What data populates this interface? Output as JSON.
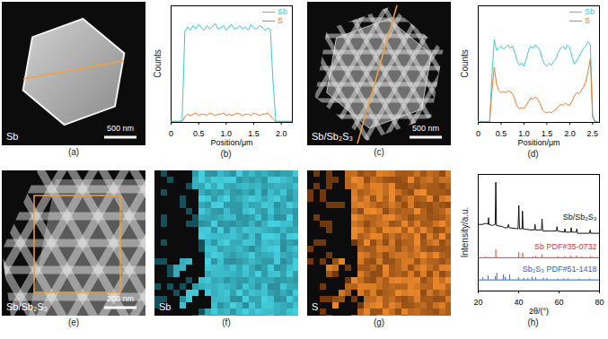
{
  "chart_data": [
    {
      "type": "line",
      "title": "(b)",
      "xlabel": "Position/μm",
      "ylabel": "Counts",
      "x": [
        0,
        0.05,
        0.1,
        0.15,
        0.2,
        0.25,
        0.3,
        0.35,
        0.4,
        0.45,
        0.5,
        0.55,
        0.6,
        0.65,
        0.7,
        0.75,
        0.8,
        0.85,
        0.9,
        0.95,
        1,
        1.05,
        1.1,
        1.15,
        1.2,
        1.25,
        1.3,
        1.35,
        1.4,
        1.45,
        1.5,
        1.55,
        1.6,
        1.65,
        1.7,
        1.75,
        1.8,
        1.85,
        1.9,
        1.95,
        2,
        2.05,
        2.1,
        2.15,
        2.2
      ],
      "xlim": [
        0,
        2.2
      ],
      "xticks": [
        0,
        0.5,
        {
          "value": 1,
          "label": "1.0"
        },
        1.5,
        {
          "value": 2,
          "label": "2.0"
        }
      ],
      "ylim": [
        0,
        1
      ],
      "tick_labels": "x",
      "legend": "top-right",
      "series": [
        {
          "name": "Sb",
          "color": "#3cc8d8",
          "values": [
            0.01,
            0.01,
            0.01,
            0.01,
            0.02,
            0.78,
            0.82,
            0.79,
            0.83,
            0.8,
            0.84,
            0.81,
            0.79,
            0.83,
            0.8,
            0.82,
            0.85,
            0.8,
            0.81,
            0.83,
            0.79,
            0.82,
            0.84,
            0.8,
            0.81,
            0.83,
            0.8,
            0.82,
            0.79,
            0.84,
            0.81,
            0.8,
            0.83,
            0.82,
            0.79,
            0.81,
            0.8,
            0.35,
            0.01,
            0.01,
            0.01,
            0.01,
            0.01,
            0.01,
            0.01
          ]
        },
        {
          "name": "S",
          "color": "#f07a2a",
          "values": [
            0.005,
            0.005,
            0.005,
            0.005,
            0.005,
            0.05,
            0.07,
            0.06,
            0.07,
            0.08,
            0.06,
            0.07,
            0.07,
            0.06,
            0.08,
            0.07,
            0.06,
            0.07,
            0.07,
            0.08,
            0.06,
            0.07,
            0.06,
            0.07,
            0.08,
            0.07,
            0.06,
            0.07,
            0.07,
            0.06,
            0.08,
            0.07,
            0.06,
            0.07,
            0.07,
            0.08,
            0.06,
            0.03,
            0.005,
            0.005,
            0.005,
            0.005,
            0.005,
            0.005,
            0.005
          ]
        }
      ]
    },
    {
      "type": "line",
      "title": "(d)",
      "xlabel": "Position/μm",
      "ylabel": "Counts",
      "x": [
        0,
        0.05,
        0.1,
        0.15,
        0.2,
        0.25,
        0.3,
        0.35,
        0.4,
        0.45,
        0.5,
        0.55,
        0.6,
        0.65,
        0.7,
        0.75,
        0.8,
        0.85,
        0.9,
        0.95,
        1,
        1.05,
        1.1,
        1.15,
        1.2,
        1.25,
        1.3,
        1.35,
        1.4,
        1.45,
        1.5,
        1.55,
        1.6,
        1.65,
        1.7,
        1.75,
        1.8,
        1.85,
        1.9,
        1.95,
        2,
        2.05,
        2.1,
        2.15,
        2.2,
        2.25,
        2.3,
        2.35,
        2.4,
        2.45,
        2.5,
        2.55,
        2.6
      ],
      "xlim": [
        0,
        2.65
      ],
      "xticks": [
        0,
        0.5,
        {
          "value": 1,
          "label": "1.0"
        },
        1.5,
        {
          "value": 2,
          "label": "2.0"
        },
        2.5
      ],
      "ylim": [
        0,
        1.1
      ],
      "tick_labels": "x",
      "legend": "top-right",
      "series": [
        {
          "name": "Sb",
          "color": "#3cc8d8",
          "values": [
            0.01,
            0.01,
            0.01,
            0.01,
            0.01,
            0.01,
            0.45,
            0.78,
            0.68,
            0.7,
            0.72,
            0.69,
            0.71,
            0.73,
            0.7,
            0.72,
            0.66,
            0.58,
            0.54,
            0.56,
            0.53,
            0.6,
            0.68,
            0.72,
            0.7,
            0.73,
            0.71,
            0.68,
            0.6,
            0.55,
            0.53,
            0.56,
            0.54,
            0.58,
            0.6,
            0.66,
            0.7,
            0.72,
            0.69,
            0.73,
            0.71,
            0.62,
            0.55,
            0.58,
            0.62,
            0.66,
            0.7,
            0.72,
            0.76,
            0.74,
            0.08,
            0.01,
            0.01
          ]
        },
        {
          "name": "S",
          "color": "#f07a2a",
          "values": [
            0.005,
            0.005,
            0.005,
            0.005,
            0.005,
            0.005,
            0.3,
            0.52,
            0.36,
            0.3,
            0.28,
            0.29,
            0.28,
            0.3,
            0.29,
            0.27,
            0.22,
            0.15,
            0.13,
            0.14,
            0.13,
            0.16,
            0.2,
            0.23,
            0.22,
            0.24,
            0.22,
            0.18,
            0.12,
            0.1,
            0.09,
            0.1,
            0.09,
            0.11,
            0.12,
            0.15,
            0.17,
            0.16,
            0.18,
            0.17,
            0.16,
            0.2,
            0.25,
            0.28,
            0.27,
            0.3,
            0.33,
            0.38,
            0.48,
            0.6,
            0.05,
            0.005,
            0.005
          ]
        }
      ]
    },
    {
      "type": "line",
      "title": "(h)",
      "xlabel": "2θ/(°)",
      "ylabel": "Intensity/a.u.",
      "xlim": [
        20,
        80
      ],
      "xticks": [
        20,
        40,
        60,
        80
      ],
      "ylim": [
        0,
        1.05
      ],
      "tick_labels": "x",
      "legend": "inline",
      "series": [
        {
          "name": "Sb/Sb₂S₃",
          "color": "#111111",
          "type": "line",
          "x": [
            20,
            22,
            24,
            24.9,
            25.1,
            25.3,
            27,
            28.4,
            28.7,
            29,
            32,
            33,
            34.5,
            35,
            35.3,
            39.7,
            40.1,
            40.4,
            41.7,
            41.9,
            42.2,
            46,
            47.8,
            48.1,
            48.4,
            51.3,
            51.6,
            51.9,
            56,
            58.7,
            59,
            59.3,
            62.6,
            62.9,
            63.2,
            65.8,
            66,
            66.3,
            68.5,
            68.8,
            69.1,
            75.1,
            75.4,
            75.7,
            80
          ],
          "values": [
            0.6,
            0.6,
            0.61,
            0.6,
            0.66,
            0.6,
            0.59,
            0.6,
            0.98,
            0.59,
            0.58,
            0.57,
            0.57,
            0.6,
            0.57,
            0.56,
            0.77,
            0.56,
            0.56,
            0.72,
            0.56,
            0.55,
            0.55,
            0.6,
            0.55,
            0.55,
            0.65,
            0.54,
            0.54,
            0.54,
            0.58,
            0.54,
            0.53,
            0.56,
            0.53,
            0.53,
            0.57,
            0.53,
            0.53,
            0.56,
            0.52,
            0.52,
            0.55,
            0.52,
            0.52
          ]
        },
        {
          "name": "Sb PDF#35-0732",
          "color": "#e8312f",
          "type": "stick",
          "base": 0.3,
          "x": [
            23.7,
            28.7,
            40.1,
            42,
            47.1,
            48.4,
            51.6,
            59.4,
            62.9,
            65.9,
            68.6,
            71.3,
            75.5,
            76.6
          ],
          "values": [
            0.305,
            0.37,
            0.345,
            0.34,
            0.305,
            0.31,
            0.325,
            0.31,
            0.31,
            0.315,
            0.315,
            0.305,
            0.31,
            0.305
          ]
        },
        {
          "name": "Sb₂S₃ PDF#51-1418",
          "color": "#2f5fc8",
          "type": "stick",
          "base": 0.1,
          "x": [
            22.3,
            24.9,
            28.5,
            29.2,
            32.4,
            33.4,
            35.6,
            39.9,
            42.6,
            44.6,
            46.7,
            48.4,
            52.2,
            54,
            59.3,
            62.4,
            64.4,
            70,
            75
          ],
          "values": [
            0.12,
            0.135,
            0.13,
            0.16,
            0.145,
            0.125,
            0.145,
            0.12,
            0.115,
            0.115,
            0.125,
            0.12,
            0.115,
            0.115,
            0.11,
            0.11,
            0.11,
            0.108,
            0.108
          ]
        }
      ]
    }
  ],
  "images": [
    {
      "panel": "(a)",
      "label": "Sb",
      "scale_bar": "500 nm"
    },
    {
      "panel": "(c)",
      "label": "Sb/Sb₂S₃",
      "scale_bar": "500 nm"
    },
    {
      "panel": "(e)",
      "label": "Sb/Sb₂S₃",
      "scale_bar": "200 nm"
    },
    {
      "panel": "(f)",
      "label": "Sb"
    },
    {
      "panel": "(g)",
      "label": "S"
    }
  ]
}
